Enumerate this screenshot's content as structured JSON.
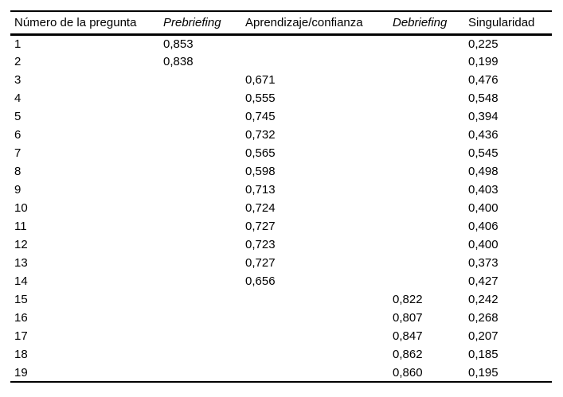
{
  "colors": {
    "background": "#ffffff",
    "text": "#000000",
    "rule": "#000000"
  },
  "table": {
    "columns": [
      {
        "label": "Número de la pregunta",
        "italic": false
      },
      {
        "label": "Prebriefing",
        "italic": true
      },
      {
        "label": "Aprendizaje/confianza",
        "italic": false
      },
      {
        "label": "Debriefing",
        "italic": true
      },
      {
        "label": "Singularidad",
        "italic": false
      }
    ],
    "rows": [
      [
        "1",
        "0,853",
        "",
        "",
        "0,225"
      ],
      [
        "2",
        "0,838",
        "",
        "",
        "0,199"
      ],
      [
        "3",
        "",
        "0,671",
        "",
        "0,476"
      ],
      [
        "4",
        "",
        "0,555",
        "",
        "0,548"
      ],
      [
        "5",
        "",
        "0,745",
        "",
        "0,394"
      ],
      [
        "6",
        "",
        "0,732",
        "",
        "0,436"
      ],
      [
        "7",
        "",
        "0,565",
        "",
        "0,545"
      ],
      [
        "8",
        "",
        "0,598",
        "",
        "0,498"
      ],
      [
        "9",
        "",
        "0,713",
        "",
        "0,403"
      ],
      [
        "10",
        "",
        "0,724",
        "",
        "0,400"
      ],
      [
        "11",
        "",
        "0,727",
        "",
        "0,406"
      ],
      [
        "12",
        "",
        "0,723",
        "",
        "0,400"
      ],
      [
        "13",
        "",
        "0,727",
        "",
        "0,373"
      ],
      [
        "14",
        "",
        "0,656",
        "",
        "0,427"
      ],
      [
        "15",
        "",
        "",
        "0,822",
        "0,242"
      ],
      [
        "16",
        "",
        "",
        "0,807",
        "0,268"
      ],
      [
        "17",
        "",
        "",
        "0,847",
        "0,207"
      ],
      [
        "18",
        "",
        "",
        "0,862",
        "0,185"
      ],
      [
        "19",
        "",
        "",
        "0,860",
        "0,195"
      ]
    ]
  }
}
